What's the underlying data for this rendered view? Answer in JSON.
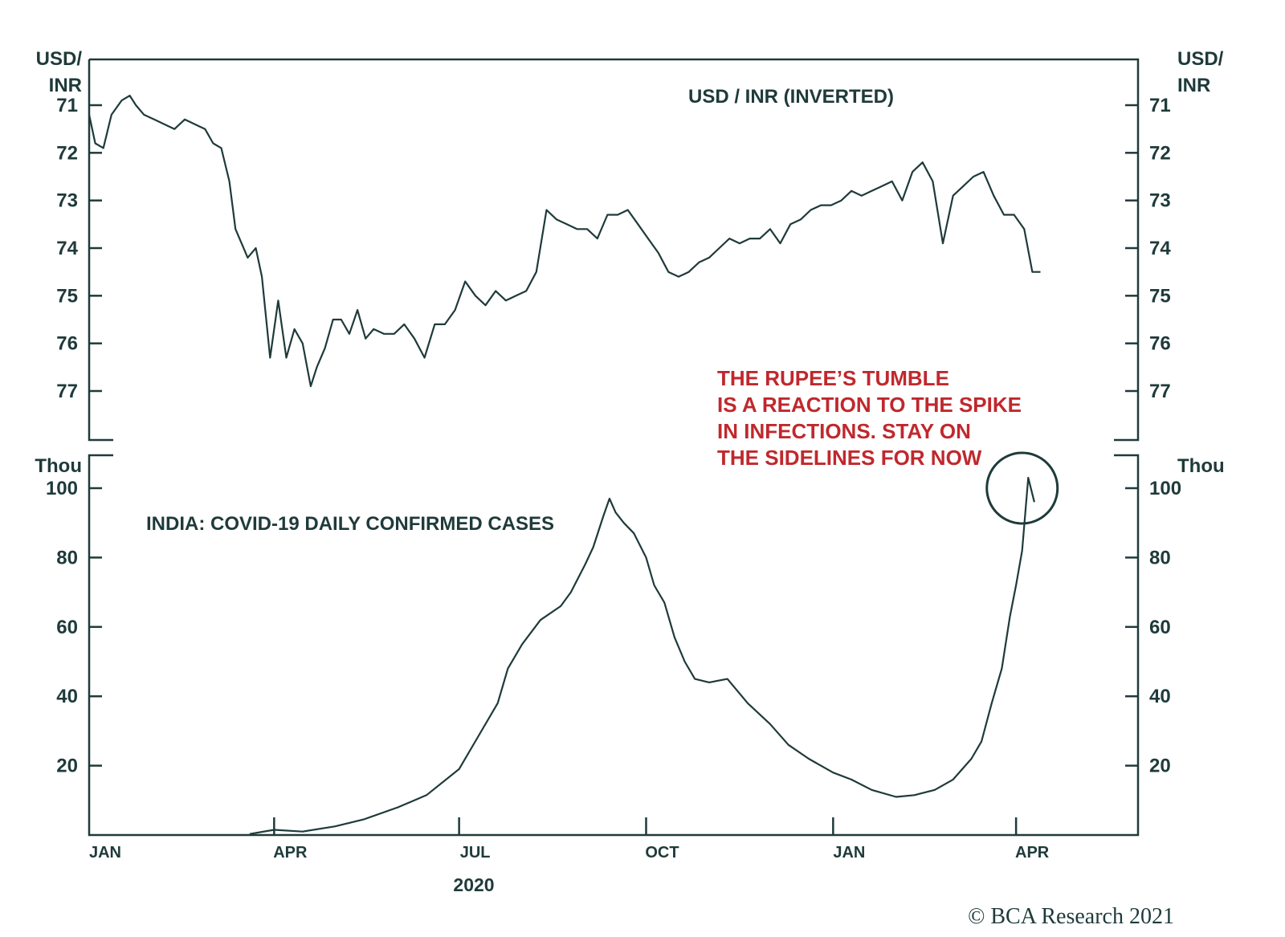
{
  "chart_data": [
    {
      "type": "line",
      "title": "USD / INR (INVERTED)",
      "left_unit_label": [
        "USD/",
        "INR"
      ],
      "right_unit_label": [
        "USD/",
        "INR"
      ],
      "y_inverted": true,
      "ylim": [
        70.0,
        78.0
      ],
      "yticks": [
        71,
        72,
        73,
        74,
        75,
        76,
        77
      ],
      "xlim": [
        "2020-01-01",
        "2021-05-31"
      ],
      "series": [
        {
          "x": [
            "2020-01-01",
            "2020-01-04",
            "2020-01-08",
            "2020-01-12",
            "2020-01-17",
            "2020-01-21",
            "2020-01-24",
            "2020-01-28",
            "2020-02-02",
            "2020-02-07",
            "2020-02-12",
            "2020-02-17",
            "2020-02-22",
            "2020-02-27",
            "2020-03-02",
            "2020-03-06",
            "2020-03-10",
            "2020-03-13",
            "2020-03-16",
            "2020-03-19",
            "2020-03-23",
            "2020-03-26",
            "2020-03-30",
            "2020-04-03",
            "2020-04-07",
            "2020-04-11",
            "2020-04-15",
            "2020-04-19",
            "2020-04-22",
            "2020-04-26",
            "2020-04-30",
            "2020-05-04",
            "2020-05-08",
            "2020-05-12",
            "2020-05-16",
            "2020-05-20",
            "2020-05-25",
            "2020-05-30",
            "2020-06-04",
            "2020-06-09",
            "2020-06-14",
            "2020-06-19",
            "2020-06-24",
            "2020-06-29",
            "2020-07-04",
            "2020-07-09",
            "2020-07-14",
            "2020-07-19",
            "2020-07-24",
            "2020-07-29",
            "2020-08-03",
            "2020-08-08",
            "2020-08-13",
            "2020-08-18",
            "2020-08-23",
            "2020-08-28",
            "2020-09-02",
            "2020-09-07",
            "2020-09-12",
            "2020-09-17",
            "2020-09-22",
            "2020-09-27",
            "2020-10-02",
            "2020-10-07",
            "2020-10-12",
            "2020-10-17",
            "2020-10-22",
            "2020-10-27",
            "2020-11-01",
            "2020-11-06",
            "2020-11-11",
            "2020-11-16",
            "2020-11-21",
            "2020-11-26",
            "2020-12-01",
            "2020-12-06",
            "2020-12-11",
            "2020-12-16",
            "2020-12-21",
            "2020-12-26",
            "2020-12-31",
            "2021-01-05",
            "2021-01-10",
            "2021-01-15",
            "2021-01-20",
            "2021-01-25",
            "2021-01-30",
            "2021-02-04",
            "2021-02-09",
            "2021-02-14",
            "2021-02-19",
            "2021-02-24",
            "2021-03-01",
            "2021-03-06",
            "2021-03-11",
            "2021-03-16",
            "2021-03-21",
            "2021-03-26",
            "2021-03-31",
            "2021-04-05",
            "2021-04-09",
            "2021-04-13"
          ],
          "values": [
            71.2,
            71.8,
            71.9,
            71.2,
            70.9,
            70.8,
            71.0,
            71.2,
            71.3,
            71.4,
            71.5,
            71.3,
            71.4,
            71.5,
            71.8,
            71.9,
            72.6,
            73.6,
            73.9,
            74.2,
            74.0,
            74.6,
            76.3,
            75.1,
            76.3,
            75.7,
            76.0,
            76.9,
            76.5,
            76.1,
            75.5,
            75.5,
            75.8,
            75.3,
            75.9,
            75.7,
            75.8,
            75.8,
            75.6,
            75.9,
            76.3,
            75.6,
            75.6,
            75.3,
            74.7,
            75.0,
            75.2,
            74.9,
            75.1,
            75.0,
            74.9,
            74.5,
            73.2,
            73.4,
            73.5,
            73.6,
            73.6,
            73.8,
            73.3,
            73.3,
            73.2,
            73.5,
            73.8,
            74.1,
            74.5,
            74.6,
            74.5,
            74.3,
            74.2,
            74.0,
            73.8,
            73.9,
            73.8,
            73.8,
            73.6,
            73.9,
            73.5,
            73.4,
            73.2,
            73.1,
            73.1,
            73.0,
            72.8,
            72.9,
            72.8,
            72.7,
            72.6,
            73.0,
            72.4,
            72.2,
            72.6,
            73.9,
            72.9,
            72.7,
            72.5,
            72.4,
            72.9,
            73.3,
            73.3,
            73.6,
            74.5,
            74.5
          ]
        }
      ]
    },
    {
      "type": "line",
      "title": "INDIA: COVID-19 DAILY CONFIRMED CASES",
      "left_unit_label": [
        "Thou"
      ],
      "right_unit_label": [
        "Thou"
      ],
      "ylim": [
        0,
        110
      ],
      "yticks": [
        20,
        40,
        60,
        80,
        100
      ],
      "xlim": [
        "2020-01-01",
        "2021-05-31"
      ],
      "xlabel": "2020",
      "x_tick_labels": [
        {
          "date": "2020-01-01",
          "label": "JAN"
        },
        {
          "date": "2020-04-01",
          "label": "APR"
        },
        {
          "date": "2020-07-01",
          "label": "JUL"
        },
        {
          "date": "2020-10-01",
          "label": "OCT"
        },
        {
          "date": "2021-01-01",
          "label": "JAN"
        },
        {
          "date": "2021-04-01",
          "label": "APR"
        }
      ],
      "series": [
        {
          "x": [
            "2020-03-20",
            "2020-04-01",
            "2020-04-15",
            "2020-05-01",
            "2020-05-15",
            "2020-06-01",
            "2020-06-15",
            "2020-07-01",
            "2020-07-10",
            "2020-07-20",
            "2020-07-25",
            "2020-08-01",
            "2020-08-10",
            "2020-08-20",
            "2020-08-25",
            "2020-09-01",
            "2020-09-05",
            "2020-09-10",
            "2020-09-13",
            "2020-09-16",
            "2020-09-20",
            "2020-09-25",
            "2020-10-01",
            "2020-10-05",
            "2020-10-10",
            "2020-10-15",
            "2020-10-20",
            "2020-10-25",
            "2020-11-01",
            "2020-11-10",
            "2020-11-20",
            "2020-12-01",
            "2020-12-10",
            "2020-12-20",
            "2021-01-01",
            "2021-01-10",
            "2021-01-20",
            "2021-02-01",
            "2021-02-10",
            "2021-02-20",
            "2021-03-01",
            "2021-03-10",
            "2021-03-15",
            "2021-03-20",
            "2021-03-25",
            "2021-03-29",
            "2021-04-01",
            "2021-04-04",
            "2021-04-07",
            "2021-04-10"
          ],
          "values": [
            0.3,
            1.5,
            1.0,
            2.5,
            4.5,
            8.0,
            11.5,
            19.0,
            28.0,
            38.0,
            48.0,
            55.0,
            62.0,
            66.0,
            70.0,
            78.0,
            83.0,
            92.0,
            97.0,
            93.0,
            90.0,
            87.0,
            80.0,
            72.0,
            67.0,
            57.0,
            50.0,
            45.0,
            44.0,
            45.0,
            38.0,
            32.0,
            26.0,
            22.0,
            18.0,
            16.0,
            13.0,
            11.0,
            11.5,
            13.0,
            16.0,
            22.0,
            27.0,
            38.0,
            48.0,
            63.0,
            72.0,
            82.0,
            103.0,
            96.0
          ]
        }
      ],
      "highlight_circle": {
        "date": "2021-04-04",
        "value": 100
      },
      "annotation": [
        "THE RUPEE’S TUMBLE",
        "IS A REACTION TO THE SPIKE",
        "IN INFECTIONS. STAY ON",
        "THE SIDELINES FOR NOW"
      ]
    }
  ],
  "colors": {
    "line": "#1f3a3a",
    "axis": "#1f3a3a",
    "annotation": "#c0282d"
  },
  "copyright": {
    "symbol": "©",
    "brand": "BCA",
    "text": "Research 2021"
  }
}
